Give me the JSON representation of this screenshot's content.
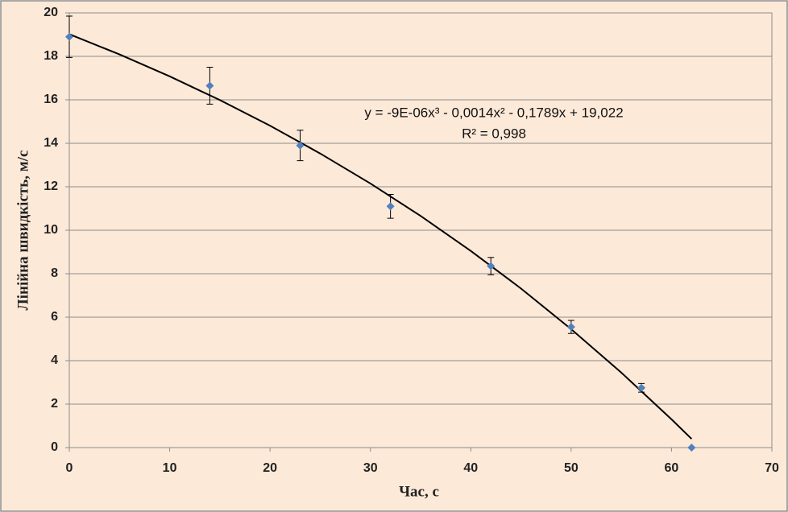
{
  "chart_data": {
    "type": "scatter",
    "xlabel": "Час, с",
    "ylabel": "Лінійна швидкість, м/с",
    "annotations": [
      "y = -9E-06x³ - 0,0014x² - 0,1789x + 19,022",
      "R² = 0,998"
    ],
    "series": [
      {
        "color": "#4f81bd",
        "x": [
          0,
          14,
          23,
          32,
          42,
          50,
          57,
          62
        ],
        "values": [
          18.9,
          16.65,
          13.9,
          11.1,
          8.35,
          5.55,
          2.75,
          0
        ],
        "errors": [
          0.95,
          0.85,
          0.7,
          0.55,
          0.4,
          0.3,
          0.2,
          0
        ]
      }
    ],
    "trendline": {
      "color": "#000000",
      "x": [
        0,
        5,
        10,
        15,
        20,
        25,
        30,
        35,
        40,
        45,
        50,
        55,
        60,
        62
      ],
      "values": [
        19.02,
        18.09,
        17.08,
        15.99,
        14.81,
        13.53,
        12.15,
        10.66,
        9.05,
        7.32,
        5.45,
        3.45,
        1.3,
        0.4
      ]
    },
    "xlim": [
      0,
      70
    ],
    "xticks": [
      0,
      10,
      20,
      30,
      40,
      50,
      60,
      70
    ],
    "ylim": [
      0,
      20
    ],
    "yticks": [
      0,
      2,
      4,
      6,
      8,
      10,
      12,
      14,
      16,
      18,
      20
    ],
    "grid": true
  }
}
